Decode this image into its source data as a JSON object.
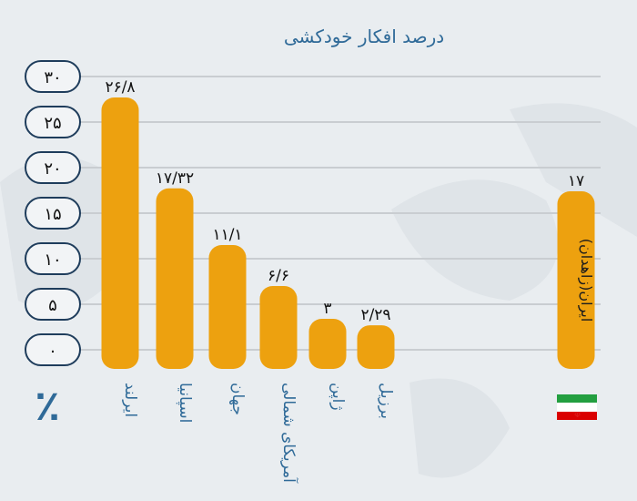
{
  "chart_data": {
    "type": "bar",
    "title": "درصد افکار خودکشی",
    "unit_label": "٪",
    "categories": [
      "ایرلند",
      "اسپانیا",
      "جهان",
      "آمریکای شمالی",
      "ژاپن",
      "برزیل",
      "ایران(زاهدان)"
    ],
    "values": [
      26.8,
      17.32,
      11.1,
      6.6,
      3,
      2.29,
      17
    ],
    "data_labels": [
      "۲۶/۸",
      "۱۷/۳۲",
      "۱۱/۱",
      "۶/۶",
      "۳",
      "۲/۲۹",
      "۱۷"
    ],
    "ylim": [
      0,
      30
    ],
    "yticks": [
      0,
      5,
      10,
      15,
      20,
      25,
      30
    ],
    "ytick_labels": [
      "۰",
      "۵",
      "۱۰",
      "۱۵",
      "۲۰",
      "۲۵",
      "۳۰"
    ],
    "grid": true,
    "colors": {
      "bar": "#eda10f",
      "title": "#2f6a98",
      "tick_border": "#1f3d5c",
      "grid": "#c9cdd1"
    },
    "highlight_icon": "iran-flag-icon"
  }
}
